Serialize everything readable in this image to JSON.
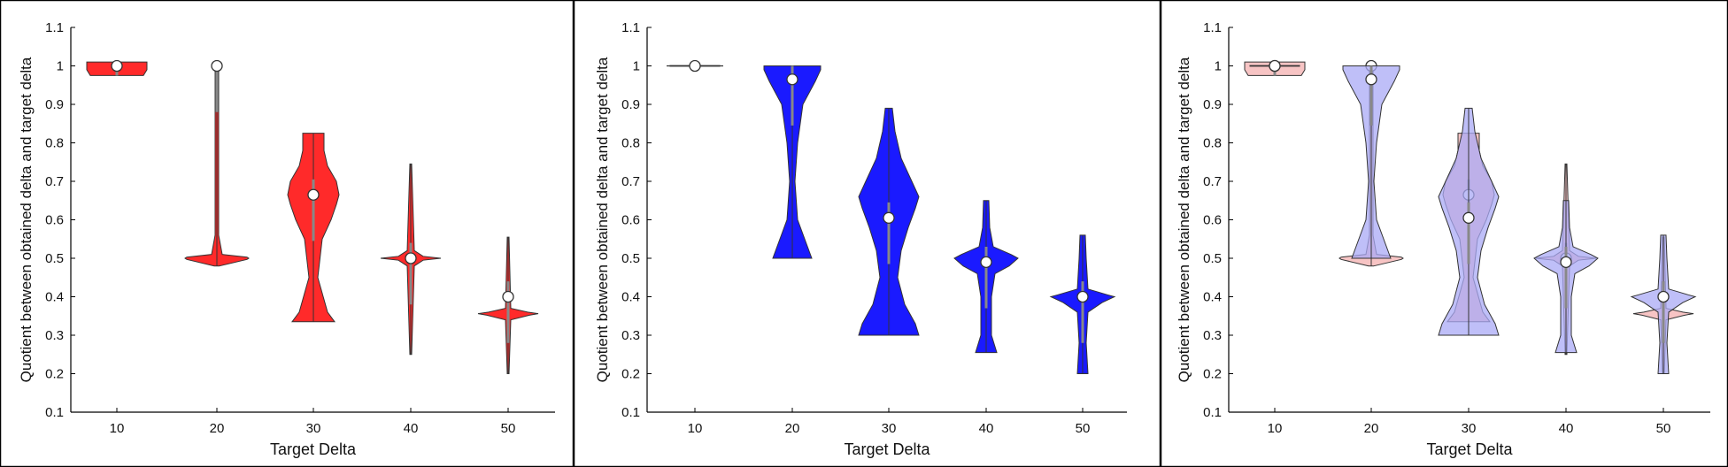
{
  "figure": {
    "colors": {
      "red": "#ff2a2a",
      "blue": "#1a1aff",
      "light_red": "#f4b0b0",
      "light_blue": "#aaaaf6",
      "overlap": "#a05ac8",
      "stroke": "#333333"
    }
  },
  "chart_data": [
    {
      "type": "violin",
      "xlabel": "Target Delta",
      "ylabel": "Quotient between obtained delta and target delta",
      "categories": [
        "10",
        "20",
        "30",
        "40",
        "50"
      ],
      "ylim": [
        0.1,
        1.1
      ],
      "yticks": [
        "0.1",
        "0.2",
        "0.3",
        "0.4",
        "0.5",
        "0.6",
        "0.7",
        "0.8",
        "0.9",
        "1",
        "1.1"
      ],
      "grid": false,
      "series": [
        {
          "color": "red",
          "medians": [
            1.0,
            1.0,
            0.665,
            0.5,
            0.4
          ],
          "ranges": [
            [
              0.975,
              1.01
            ],
            [
              0.48,
              1.0
            ],
            [
              0.335,
              0.825
            ],
            [
              0.25,
              0.745
            ],
            [
              0.2,
              0.555
            ]
          ]
        }
      ]
    },
    {
      "type": "violin",
      "xlabel": "Target Delta",
      "ylabel": "Quotient between obtained delta and target delta",
      "categories": [
        "10",
        "20",
        "30",
        "40",
        "50"
      ],
      "ylim": [
        0.1,
        1.1
      ],
      "yticks": [
        "0.1",
        "0.2",
        "0.3",
        "0.4",
        "0.5",
        "0.6",
        "0.7",
        "0.8",
        "0.9",
        "1",
        "1.1"
      ],
      "grid": false,
      "series": [
        {
          "color": "blue",
          "medians": [
            1.0,
            0.965,
            0.605,
            0.49,
            0.4
          ],
          "ranges": [
            [
              1.0,
              1.0
            ],
            [
              0.5,
              1.0
            ],
            [
              0.3,
              0.89
            ],
            [
              0.255,
              0.65
            ],
            [
              0.2,
              0.56
            ]
          ]
        }
      ]
    },
    {
      "type": "violin",
      "xlabel": "Target Delta",
      "ylabel": "Quotient between obtained delta and target delta",
      "categories": [
        "10",
        "20",
        "30",
        "40",
        "50"
      ],
      "ylim": [
        0.1,
        1.1
      ],
      "yticks": [
        "0.1",
        "0.2",
        "0.3",
        "0.4",
        "0.5",
        "0.6",
        "0.7",
        "0.8",
        "0.9",
        "1",
        "1.1"
      ],
      "grid": false,
      "series": [
        {
          "color": "light_red",
          "medians": [
            1.0,
            1.0,
            0.665,
            0.5,
            0.4
          ]
        },
        {
          "color": "light_blue",
          "medians": [
            1.0,
            0.965,
            0.605,
            0.49,
            0.4
          ]
        }
      ]
    }
  ]
}
